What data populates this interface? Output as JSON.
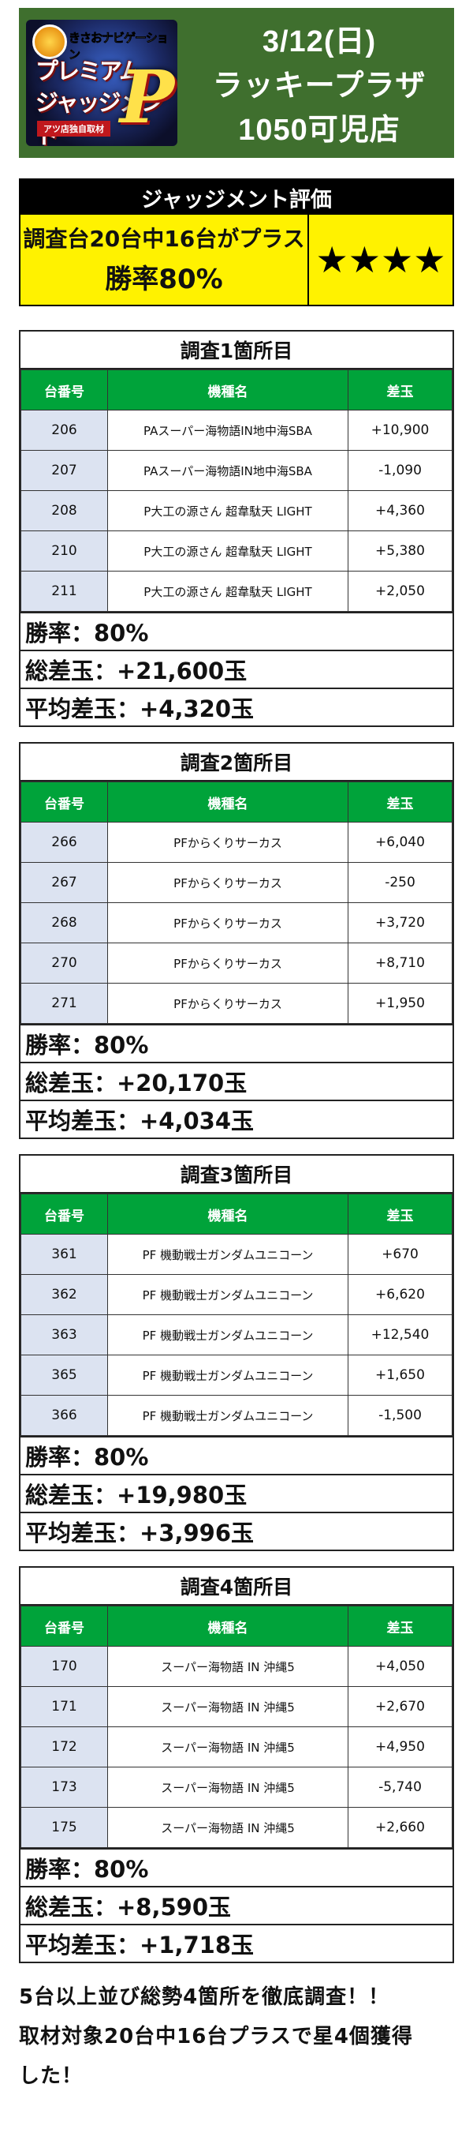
{
  "header": {
    "logo": {
      "top_text": "きさおナビゲーション",
      "title_line1": "プレミアム",
      "title_line2": "ジャッジメント",
      "big_letter": "P",
      "sub_text": "アツ店独自取材"
    },
    "date": "3/12(日)",
    "store_line1": "ラッキープラザ",
    "store_line2": "1050可児店"
  },
  "evaluation": {
    "title": "ジャッジメント評価",
    "line1": "調査台20台中16台がプラス",
    "line2": "勝率80%",
    "stars": "★★★★",
    "star_count": 4
  },
  "columns": {
    "number": "台番号",
    "machine": "機種名",
    "diff": "差玉"
  },
  "surveys": [
    {
      "title": "調査1箇所目",
      "rows": [
        {
          "num": "206",
          "machine": "PAスーパー海物語IN地中海SBA",
          "diff": "+10,900"
        },
        {
          "num": "207",
          "machine": "PAスーパー海物語IN地中海SBA",
          "diff": "-1,090"
        },
        {
          "num": "208",
          "machine": "P大工の源さん 超韋駄天 LIGHT",
          "diff": "+4,360"
        },
        {
          "num": "210",
          "machine": "P大工の源さん 超韋駄天 LIGHT",
          "diff": "+5,380"
        },
        {
          "num": "211",
          "machine": "P大工の源さん 超韋駄天 LIGHT",
          "diff": "+2,050"
        }
      ],
      "win_rate": "勝率：80%",
      "total": "総差玉：+21,600玉",
      "average": "平均差玉：+4,320玉"
    },
    {
      "title": "調査2箇所目",
      "rows": [
        {
          "num": "266",
          "machine": "PFからくりサーカス",
          "diff": "+6,040"
        },
        {
          "num": "267",
          "machine": "PFからくりサーカス",
          "diff": "-250"
        },
        {
          "num": "268",
          "machine": "PFからくりサーカス",
          "diff": "+3,720"
        },
        {
          "num": "270",
          "machine": "PFからくりサーカス",
          "diff": "+8,710"
        },
        {
          "num": "271",
          "machine": "PFからくりサーカス",
          "diff": "+1,950"
        }
      ],
      "win_rate": "勝率：80%",
      "total": "総差玉：+20,170玉",
      "average": "平均差玉：+4,034玉"
    },
    {
      "title": "調査3箇所目",
      "rows": [
        {
          "num": "361",
          "machine": "PF 機動戦士ガンダムユニコーン",
          "diff": "+670"
        },
        {
          "num": "362",
          "machine": "PF 機動戦士ガンダムユニコーン",
          "diff": "+6,620"
        },
        {
          "num": "363",
          "machine": "PF 機動戦士ガンダムユニコーン",
          "diff": "+12,540"
        },
        {
          "num": "365",
          "machine": "PF 機動戦士ガンダムユニコーン",
          "diff": "+1,650"
        },
        {
          "num": "366",
          "machine": "PF 機動戦士ガンダムユニコーン",
          "diff": "-1,500"
        }
      ],
      "win_rate": "勝率：80%",
      "total": "総差玉：+19,980玉",
      "average": "平均差玉：+3,996玉"
    },
    {
      "title": "調査4箇所目",
      "rows": [
        {
          "num": "170",
          "machine": "スーパー海物語 IN 沖縄5",
          "diff": "+4,050"
        },
        {
          "num": "171",
          "machine": "スーパー海物語 IN 沖縄5",
          "diff": "+2,670"
        },
        {
          "num": "172",
          "machine": "スーパー海物語 IN 沖縄5",
          "diff": "+4,950"
        },
        {
          "num": "173",
          "machine": "スーパー海物語 IN 沖縄5",
          "diff": "-5,740"
        },
        {
          "num": "175",
          "machine": "スーパー海物語 IN 沖縄5",
          "diff": "+2,660"
        }
      ],
      "win_rate": "勝率：80%",
      "total": "総差玉：+8,590玉",
      "average": "平均差玉：+1,718玉"
    }
  ],
  "footer": {
    "line1": "5台以上並び総勢4箇所を徹底調査！！",
    "line2": "取材対象20台中16台プラスで星4個獲得",
    "line3": "した！"
  },
  "colors": {
    "header_bg": "#3f6f2e",
    "table_header_green": "#00a33a",
    "eval_yellow": "#fff200",
    "number_cell_blue": "#dce3f1"
  }
}
